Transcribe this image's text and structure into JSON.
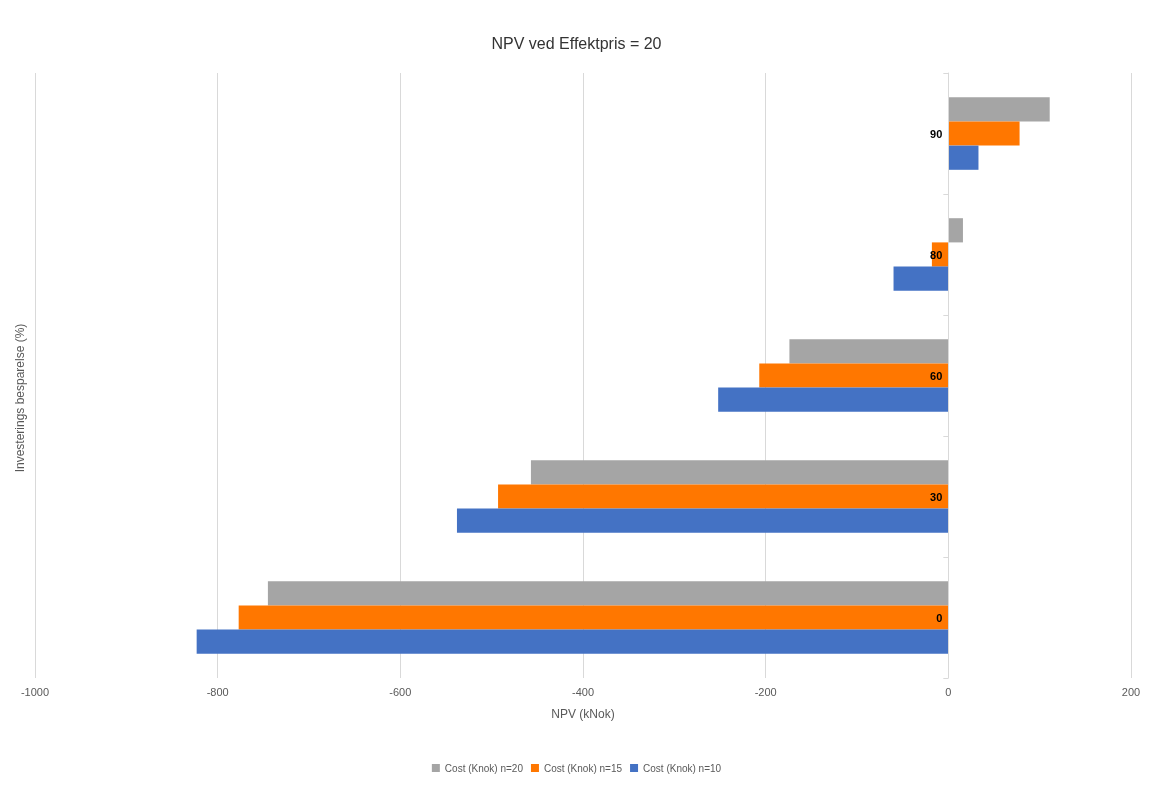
{
  "chart_data": {
    "type": "bar",
    "orientation": "horizontal",
    "title": "NPV ved Effektpris = 20",
    "xlabel": "NPV (kNok)",
    "ylabel": "Investerings besparelse (%)",
    "categories": [
      "90",
      "80",
      "60",
      "30",
      "0"
    ],
    "series": [
      {
        "name": "Cost (Knok) n=20",
        "color": "#a5a5a5",
        "values": [
          111,
          16,
          -174,
          -457,
          -745
        ]
      },
      {
        "name": "Cost (Knok) n=15",
        "color": "#ff7700",
        "values": [
          78,
          -18,
          -207,
          -493,
          -777
        ]
      },
      {
        "name": "Cost (Knok) n=10",
        "color": "#4472c4",
        "values": [
          33,
          -60,
          -252,
          -538,
          -823
        ]
      }
    ],
    "xlim": [
      -1000,
      200
    ],
    "xticks": [
      -1000,
      -800,
      -600,
      -400,
      -200,
      0,
      200
    ],
    "grid": "x",
    "legend": "bottom"
  }
}
